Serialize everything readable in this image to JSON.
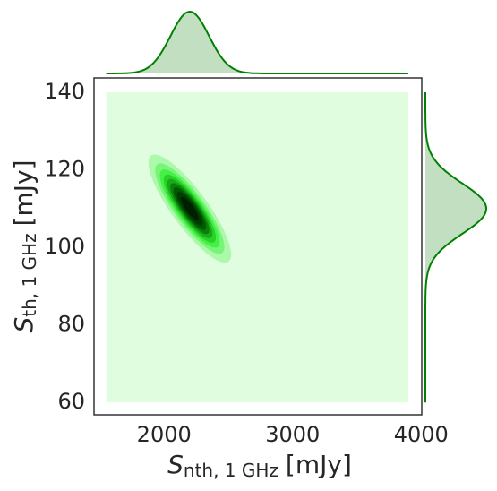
{
  "chart_data": {
    "type": "kde_joint",
    "xlabel": {
      "symbol": "S",
      "subscript": "nth, 1 GHz",
      "unit": "[mJy]"
    },
    "ylabel": {
      "symbol": "S",
      "subscript": "th, 1 GHz",
      "unit": "[mJy]"
    },
    "center": [
      2200,
      110
    ],
    "spread": [
      150,
      6.5
    ],
    "correlation": -0.85,
    "extent": {
      "x": [
        1550,
        3900
      ],
      "y": [
        60,
        140
      ]
    },
    "xlim": [
      1455,
      4005
    ],
    "ylim": [
      56.8,
      143.7
    ],
    "xticks": [
      2000,
      3000,
      4000
    ],
    "yticks": [
      60,
      80,
      100,
      120,
      140
    ],
    "cmap": [
      "#e0fde0",
      "#33ee33",
      "#006400",
      "#000000"
    ],
    "line_color": "#008000",
    "marginal_fill": "#c2dfc2"
  }
}
